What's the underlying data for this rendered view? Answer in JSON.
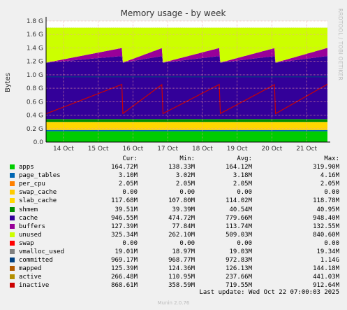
{
  "chart_data": {
    "type": "area",
    "title": "Memory usage - by week",
    "ylabel": "Bytes",
    "side_label": "RRDTOOL / TOBI OETIKER",
    "ylim": [
      0,
      1.8
    ],
    "y_unit": "G",
    "y_ticks": [
      "0.0",
      "0.2 G",
      "0.4 G",
      "0.6 G",
      "0.8 G",
      "1.0 G",
      "1.2 G",
      "1.4 G",
      "1.6 G",
      "1.8 G"
    ],
    "x_ticks": [
      "14 Oct",
      "15 Oct",
      "16 Oct",
      "17 Oct",
      "18 Oct",
      "19 Oct",
      "20 Oct",
      "21 Oct"
    ],
    "colors": {
      "plot_bg": "#ffffff",
      "grid_major": "#f0a0a0",
      "grid_minor": "#e0e0e0",
      "axis": "#000000",
      "brand": "#bbbbbb"
    },
    "stack_levels_gb": {
      "apps": 0.16,
      "page_tables_per_cpu_swap_cache": 0.02,
      "slab_cache": 0.12,
      "shmem": 0.04,
      "cache_top_fresh": 1.18,
      "cache_top_grown": 1.28,
      "buffers_extra": 0.12,
      "unused_top": 1.7,
      "committed": 0.97,
      "inactive_fresh": 0.42,
      "inactive_grown": 0.86
    },
    "columns": [
      "Cur:",
      "Min:",
      "Avg:",
      "Max:"
    ],
    "series": [
      {
        "name": "apps",
        "color": "#00cc00",
        "cur": "164.72M",
        "min": "138.33M",
        "avg": "164.12M",
        "max": "319.90M"
      },
      {
        "name": "page_tables",
        "color": "#0066b3",
        "cur": "3.10M",
        "min": "3.02M",
        "avg": "3.18M",
        "max": "4.16M"
      },
      {
        "name": "per_cpu",
        "color": "#ff8000",
        "cur": "2.05M",
        "min": "2.05M",
        "avg": "2.05M",
        "max": "2.05M"
      },
      {
        "name": "swap_cache",
        "color": "#ffcc00",
        "cur": "0.00",
        "min": "0.00",
        "avg": "0.00",
        "max": "0.00"
      },
      {
        "name": "slab_cache",
        "color": "#ffd700",
        "cur": "117.68M",
        "min": "107.80M",
        "avg": "114.02M",
        "max": "118.78M"
      },
      {
        "name": "shmem",
        "color": "#008f00",
        "cur": "39.51M",
        "min": "39.39M",
        "avg": "40.54M",
        "max": "40.95M"
      },
      {
        "name": "cache",
        "color": "#330099",
        "cur": "946.55M",
        "min": "474.72M",
        "avg": "779.66M",
        "max": "948.40M"
      },
      {
        "name": "buffers",
        "color": "#990099",
        "cur": "127.39M",
        "min": "77.84M",
        "avg": "113.74M",
        "max": "132.55M"
      },
      {
        "name": "unused",
        "color": "#ccff00",
        "cur": "325.34M",
        "min": "262.10M",
        "avg": "509.03M",
        "max": "840.60M"
      },
      {
        "name": "swap",
        "color": "#ff0000",
        "cur": "0.00",
        "min": "0.00",
        "avg": "0.00",
        "max": "0.00"
      },
      {
        "name": "vmalloc_used",
        "color": "#808080",
        "cur": "19.01M",
        "min": "18.97M",
        "avg": "19.03M",
        "max": "19.34M"
      },
      {
        "name": "committed",
        "color": "#004080",
        "cur": "969.17M",
        "min": "968.77M",
        "avg": "972.83M",
        "max": "1.14G"
      },
      {
        "name": "mapped",
        "color": "#b35a00",
        "cur": "125.39M",
        "min": "124.36M",
        "avg": "126.13M",
        "max": "144.18M"
      },
      {
        "name": "active",
        "color": "#b38f00",
        "cur": "266.48M",
        "min": "110.95M",
        "avg": "237.66M",
        "max": "441.03M"
      },
      {
        "name": "inactive",
        "color": "#cc0000",
        "cur": "868.61M",
        "min": "358.59M",
        "avg": "719.55M",
        "max": "912.64M"
      }
    ]
  },
  "footer": {
    "last_update": "Last update:  Wed Oct 22 07:00:03 2025",
    "brand": "Munin 2.0.76"
  }
}
